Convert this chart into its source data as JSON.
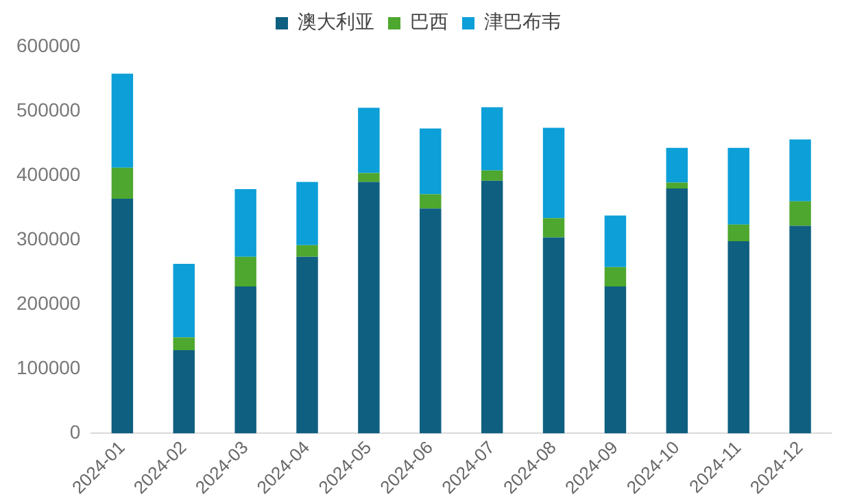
{
  "chart_data": {
    "type": "bar",
    "stacked": true,
    "categories": [
      "2024-01",
      "2024-02",
      "2024-03",
      "2024-04",
      "2024-05",
      "2024-06",
      "2024-07",
      "2024-08",
      "2024-09",
      "2024-10",
      "2024-11",
      "2024-12"
    ],
    "series": [
      {
        "name": "澳大利亚",
        "color": "#0f5f80",
        "values": [
          364000,
          129000,
          228000,
          274000,
          390000,
          349000,
          392000,
          304000,
          228000,
          380000,
          298000,
          322000
        ]
      },
      {
        "name": "巴西",
        "color": "#4ea72e",
        "values": [
          48000,
          20000,
          46000,
          18000,
          14000,
          22000,
          16000,
          30000,
          30000,
          9000,
          26000,
          38000
        ]
      },
      {
        "name": "津巴布韦",
        "color": "#0c9fd8",
        "values": [
          146000,
          114000,
          105000,
          98000,
          101000,
          102000,
          98000,
          140000,
          80000,
          54000,
          119000,
          96000
        ]
      }
    ],
    "ylim": [
      0,
      600000
    ],
    "yticks": [
      0,
      100000,
      200000,
      300000,
      400000,
      500000,
      600000
    ],
    "grid": false,
    "legend": "top"
  }
}
